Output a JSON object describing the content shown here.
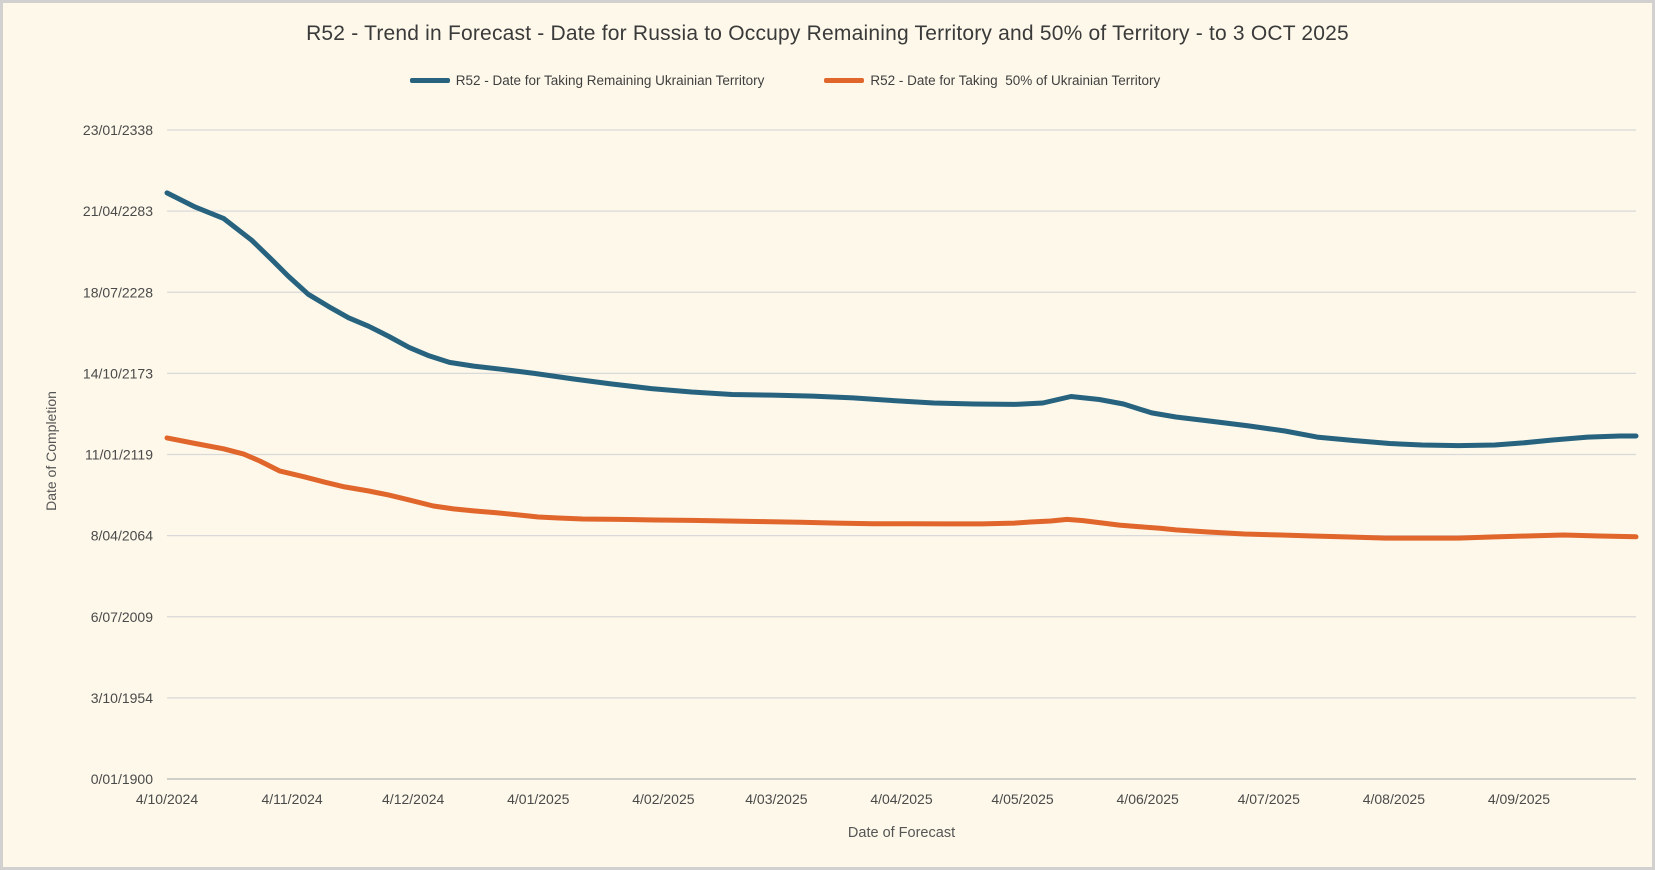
{
  "chart_data": {
    "type": "line",
    "title": "R52 - Trend in Forecast - Date for Russia to Occupy Remaining Territory and 50% of Territory - to 3 OCT 2025",
    "xlabel": "Date of Forecast",
    "ylabel": "Date of Completion",
    "legend_position": "top-center",
    "grid": "horizontal",
    "background_color": "#fdf8ea",
    "gridline_color": "#d9d9d9",
    "x_axis": {
      "min": 0,
      "max": 364,
      "unit": "days since 4/10/2024",
      "ticks": [
        {
          "day": 0,
          "label": "4/10/2024"
        },
        {
          "day": 31,
          "label": "4/11/2024"
        },
        {
          "day": 61,
          "label": "4/12/2024"
        },
        {
          "day": 92,
          "label": "4/01/2025"
        },
        {
          "day": 123,
          "label": "4/02/2025"
        },
        {
          "day": 151,
          "label": "4/03/2025"
        },
        {
          "day": 182,
          "label": "4/04/2025"
        },
        {
          "day": 212,
          "label": "4/05/2025"
        },
        {
          "day": 243,
          "label": "4/06/2025"
        },
        {
          "day": 273,
          "label": "4/07/2025"
        },
        {
          "day": 304,
          "label": "4/08/2025"
        },
        {
          "day": 335,
          "label": "4/09/2025"
        }
      ]
    },
    "y_axis": {
      "min": 0,
      "max": 160000,
      "unit": "days since 0/01/1900 (completion date)",
      "ticks": [
        {
          "value": 0,
          "label": "0/01/1900"
        },
        {
          "value": 20000,
          "label": "3/10/1954"
        },
        {
          "value": 40000,
          "label": "6/07/2009"
        },
        {
          "value": 60000,
          "label": "8/04/2064"
        },
        {
          "value": 80000,
          "label": "11/01/2119"
        },
        {
          "value": 100000,
          "label": "14/10/2173"
        },
        {
          "value": 120000,
          "label": "18/07/2228"
        },
        {
          "value": 140000,
          "label": "21/04/2283"
        },
        {
          "value": 160000,
          "label": "23/01/2338"
        }
      ]
    },
    "series": [
      {
        "id": "remaining-territory",
        "name": "R52 - Date for Taking Remaining Ukrainian Territory",
        "color": "#27637f",
        "points": [
          [
            0,
            144500
          ],
          [
            7,
            141000
          ],
          [
            14,
            138200
          ],
          [
            21,
            132800
          ],
          [
            26,
            128000
          ],
          [
            30,
            124000
          ],
          [
            35,
            119500
          ],
          [
            40,
            116500
          ],
          [
            45,
            113700
          ],
          [
            50,
            111600
          ],
          [
            55,
            109100
          ],
          [
            60,
            106400
          ],
          [
            65,
            104300
          ],
          [
            70,
            102700
          ],
          [
            76,
            101800
          ],
          [
            83,
            101000
          ],
          [
            91,
            100000
          ],
          [
            101,
            98600
          ],
          [
            110,
            97400
          ],
          [
            120,
            96250
          ],
          [
            130,
            95400
          ],
          [
            140,
            94800
          ],
          [
            150,
            94650
          ],
          [
            160,
            94400
          ],
          [
            170,
            93950
          ],
          [
            180,
            93300
          ],
          [
            190,
            92700
          ],
          [
            200,
            92450
          ],
          [
            210,
            92350
          ],
          [
            217,
            92700
          ],
          [
            224,
            94300
          ],
          [
            231,
            93550
          ],
          [
            237,
            92450
          ],
          [
            244,
            90250
          ],
          [
            250,
            89250
          ],
          [
            259,
            88150
          ],
          [
            268,
            87050
          ],
          [
            277,
            85800
          ],
          [
            285,
            84300
          ],
          [
            294,
            83450
          ],
          [
            303,
            82700
          ],
          [
            311,
            82350
          ],
          [
            320,
            82200
          ],
          [
            329,
            82350
          ],
          [
            336,
            82850
          ],
          [
            343,
            83550
          ],
          [
            352,
            84300
          ],
          [
            360,
            84550
          ],
          [
            364,
            84550
          ]
        ]
      },
      {
        "id": "50pct-territory",
        "name": "R52 - Date for Taking  50% of Ukrainian Territory",
        "color": "#e0662c",
        "points": [
          [
            0,
            84100
          ],
          [
            7,
            82700
          ],
          [
            14,
            81400
          ],
          [
            19,
            80100
          ],
          [
            23,
            78400
          ],
          [
            28,
            75900
          ],
          [
            34,
            74500
          ],
          [
            39,
            73200
          ],
          [
            44,
            72000
          ],
          [
            50,
            71000
          ],
          [
            55,
            70000
          ],
          [
            60,
            68800
          ],
          [
            66,
            67300
          ],
          [
            71,
            66600
          ],
          [
            76,
            66100
          ],
          [
            82,
            65600
          ],
          [
            87,
            65100
          ],
          [
            92,
            64600
          ],
          [
            97,
            64350
          ],
          [
            103,
            64100
          ],
          [
            112,
            64000
          ],
          [
            121,
            63850
          ],
          [
            130,
            63750
          ],
          [
            139,
            63600
          ],
          [
            148,
            63450
          ],
          [
            157,
            63300
          ],
          [
            166,
            63100
          ],
          [
            175,
            62950
          ],
          [
            184,
            62950
          ],
          [
            193,
            62900
          ],
          [
            202,
            62900
          ],
          [
            210,
            63100
          ],
          [
            214,
            63350
          ],
          [
            219,
            63600
          ],
          [
            223,
            64000
          ],
          [
            227,
            63700
          ],
          [
            232,
            63100
          ],
          [
            236,
            62600
          ],
          [
            241,
            62200
          ],
          [
            246,
            61800
          ],
          [
            250,
            61400
          ],
          [
            258,
            60900
          ],
          [
            267,
            60400
          ],
          [
            276,
            60150
          ],
          [
            284,
            59900
          ],
          [
            293,
            59650
          ],
          [
            302,
            59400
          ],
          [
            311,
            59400
          ],
          [
            320,
            59400
          ],
          [
            328,
            59650
          ],
          [
            337,
            59900
          ],
          [
            346,
            60150
          ],
          [
            355,
            59900
          ],
          [
            364,
            59700
          ]
        ]
      }
    ]
  }
}
